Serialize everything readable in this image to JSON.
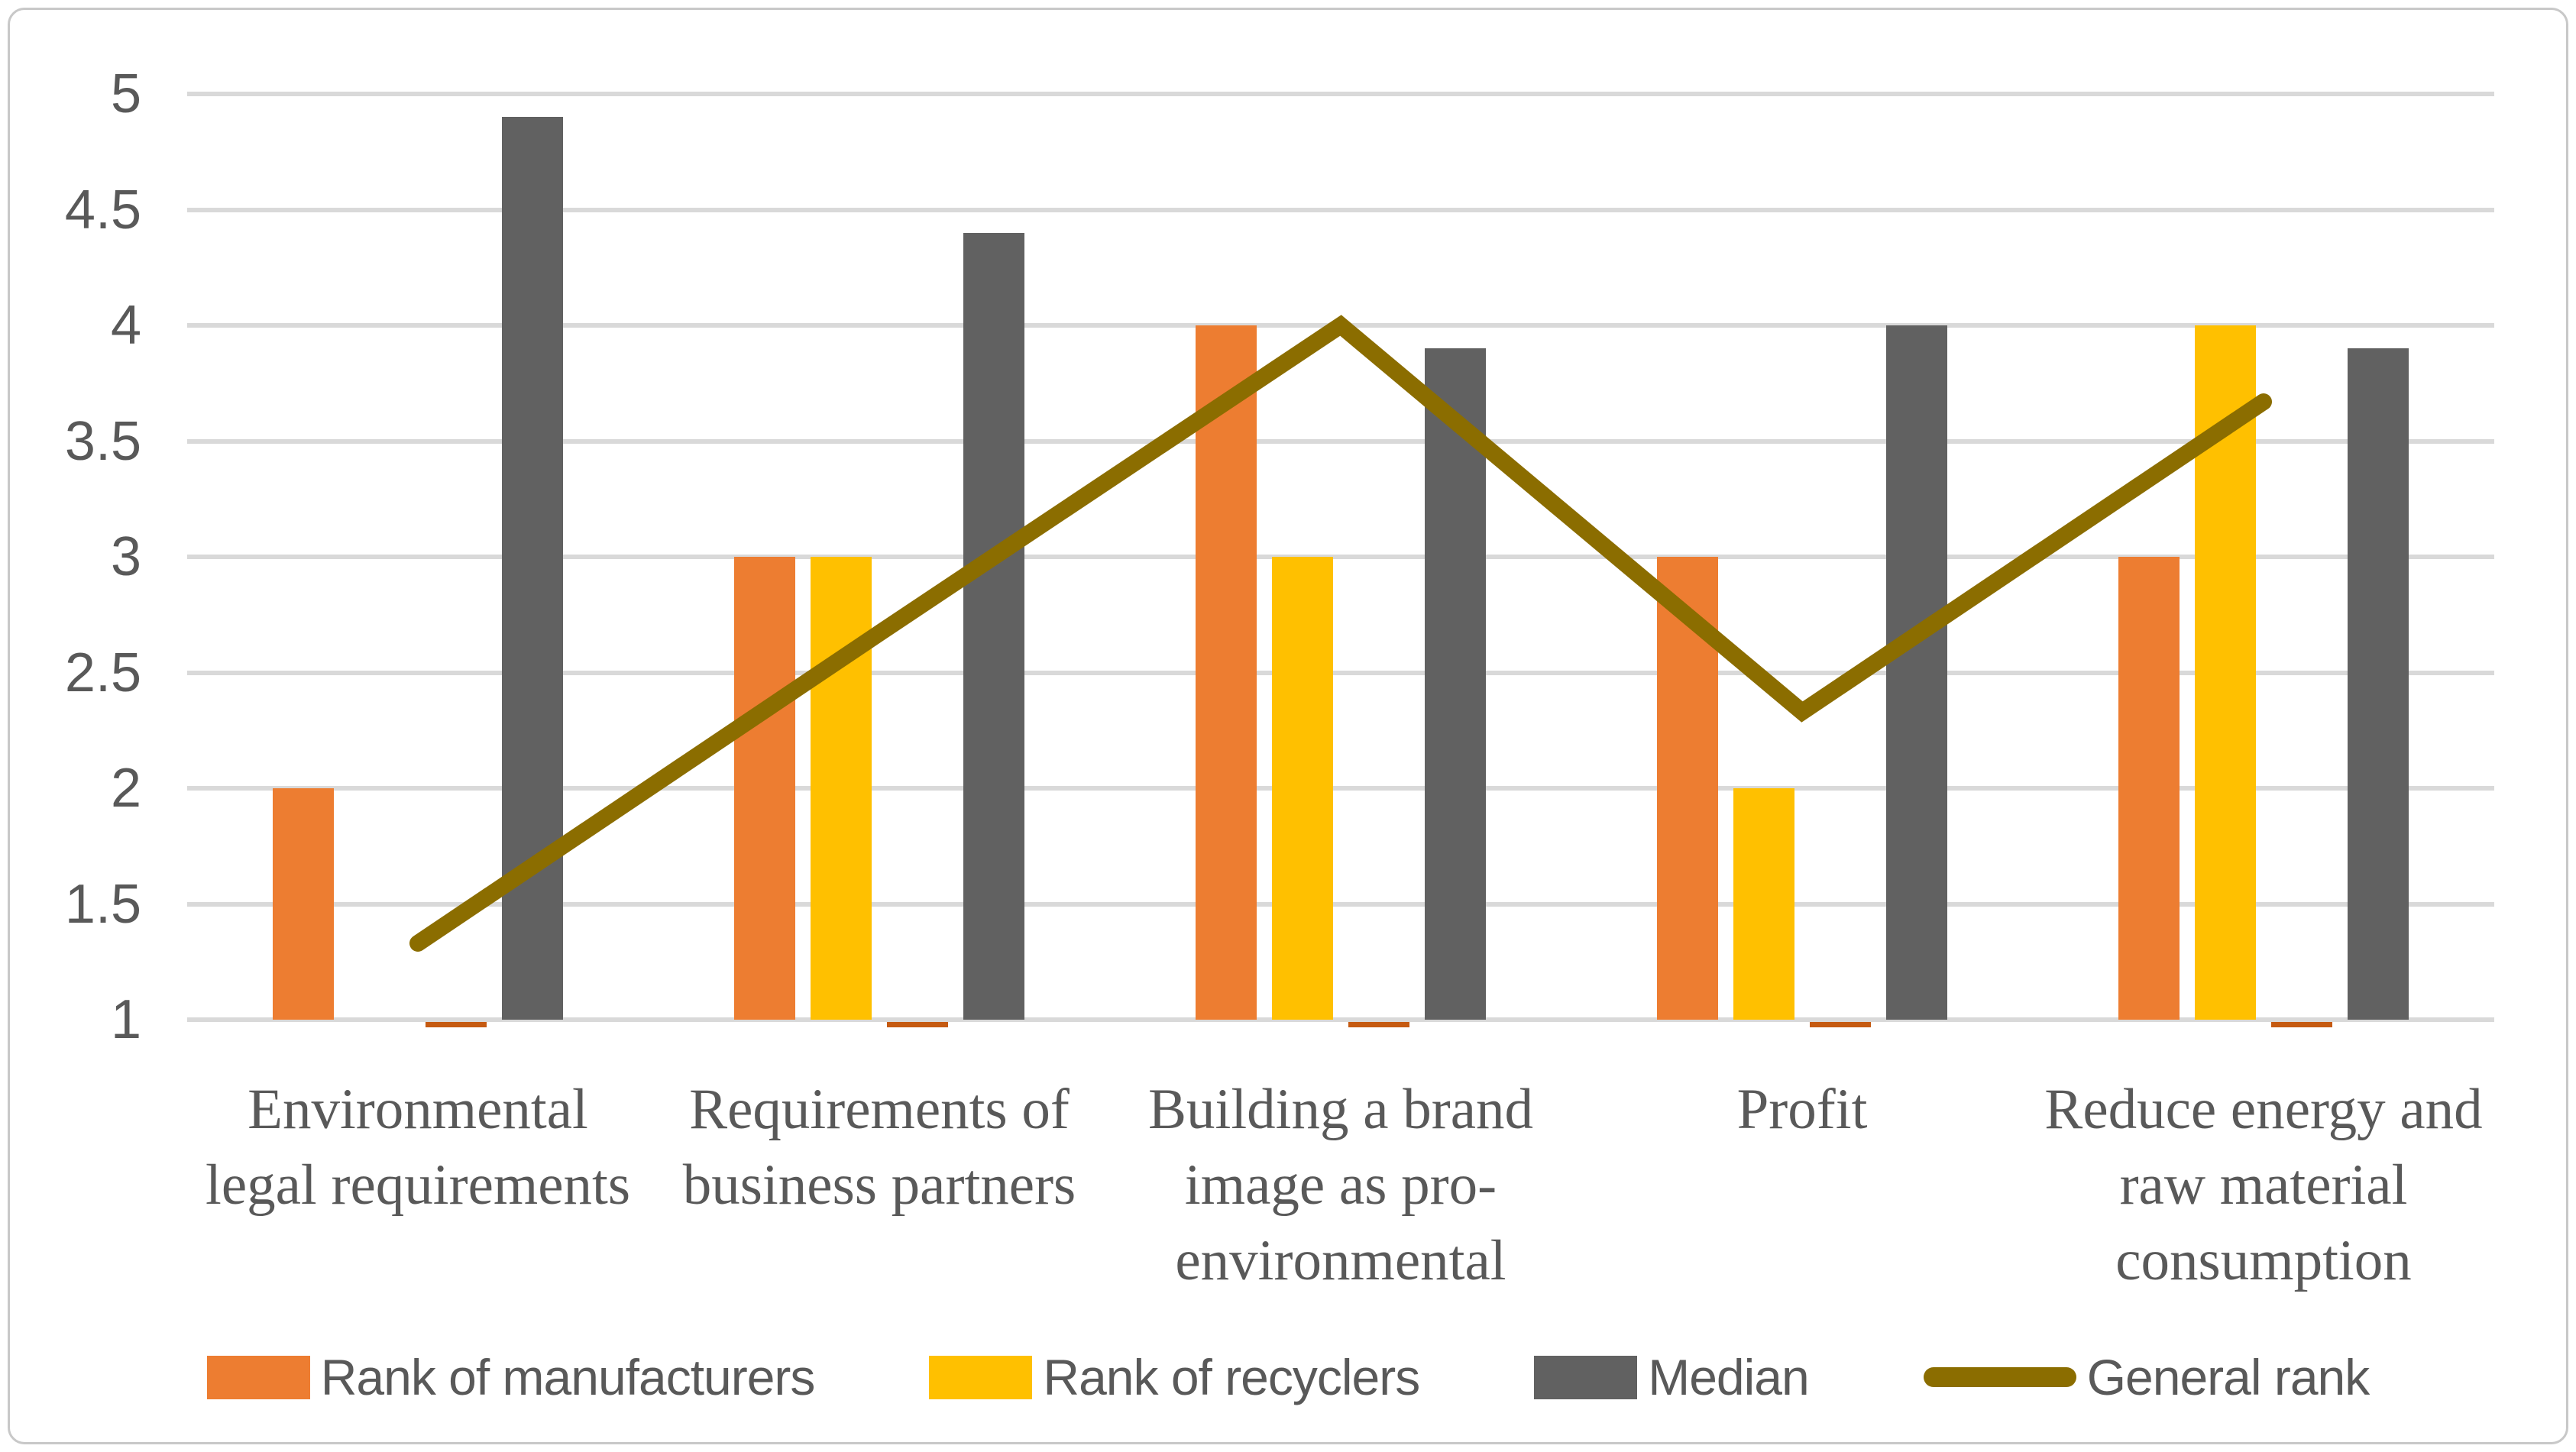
{
  "figure": {
    "background": "#FFFFFF",
    "border_color": "#C8C8C8"
  },
  "axes": {
    "y_min": 1,
    "y_max": 5,
    "y_step": 0.5,
    "y_tick_labels": [
      "1",
      "1.5",
      "2",
      "2.5",
      "3",
      "3.5",
      "4",
      "4.5",
      "5"
    ],
    "grid_color": "#D9D9D9",
    "tick_label_color": "#595959",
    "category_label_color": "#595959"
  },
  "chart_data": {
    "type": "bar",
    "title": "",
    "xlabel": "",
    "ylabel": "",
    "ylim": [
      1,
      5
    ],
    "grid": true,
    "legend_position": "bottom",
    "categories": [
      "Environmental legal requirements",
      "Requirements of business partners",
      "Building a brand image as pro-environmental",
      "Profit",
      "Reduce energy and raw material consumption"
    ],
    "series": [
      {
        "name": "Rank of manufacturers",
        "type": "bar",
        "color": "#ED7D31",
        "values": [
          2,
          3,
          4,
          3,
          3
        ]
      },
      {
        "name": "Rank of recyclers",
        "type": "bar",
        "color": "#FFC000",
        "values": [
          1,
          3,
          3,
          2,
          4
        ]
      },
      {
        "name": "",
        "type": "bar",
        "color": "#C55A11",
        "values": [
          1,
          1,
          1,
          1,
          1
        ],
        "render": "baseline_sliver",
        "note": "unlabeled series drawn only as thin slivers just below the baseline; absent from legend"
      },
      {
        "name": "Median",
        "type": "bar",
        "color": "#616161",
        "values": [
          4.9,
          4.4,
          3.9,
          4,
          3.9
        ]
      },
      {
        "name": "General rank",
        "type": "line",
        "color": "#8B6D00",
        "values": [
          1.33,
          2.67,
          4,
          2.33,
          3.67
        ]
      }
    ]
  },
  "legend": {
    "items": [
      {
        "series_index": 0,
        "swatch": "bar"
      },
      {
        "series_index": 1,
        "swatch": "bar"
      },
      {
        "series_index": 3,
        "swatch": "bar"
      },
      {
        "series_index": 4,
        "swatch": "line"
      }
    ]
  }
}
